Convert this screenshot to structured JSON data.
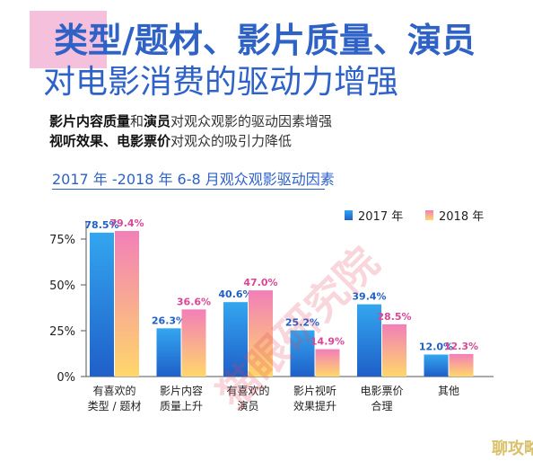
{
  "header": {
    "title_line1": "类型/题材、影片质量、演员",
    "title_line2": "对电影消费的驱动力增强"
  },
  "subtitle": {
    "line1_bold": "影片内容质量",
    "line1_mid": "和",
    "line1_bold2": "演员",
    "line1_rest": "对观众观影的驱动因素增强",
    "line2_bold": "视听效果、电影票价",
    "line2_rest": "对观众的吸引力降低"
  },
  "watermark_text": "猫眼研究院",
  "corner_logo_text": "聊攻略",
  "chart_data": {
    "type": "bar",
    "title": "2017 年 -2018 年 6-8 月观众观影驱动因素",
    "categories": [
      [
        "有喜欢的",
        "类型 / 题材"
      ],
      [
        "影片内容",
        "质量上升"
      ],
      [
        "有喜欢的",
        "演员"
      ],
      [
        "影片视听",
        "效果提升"
      ],
      [
        "电影票价",
        "合理"
      ],
      [
        "其他"
      ]
    ],
    "series": [
      {
        "name": "2017 年",
        "values": [
          78.5,
          26.3,
          40.6,
          25.2,
          39.4,
          12.0
        ],
        "labels": [
          "78.5%",
          "26.3%",
          "40.6%",
          "25.2%",
          "39.4%",
          "12.0%"
        ]
      },
      {
        "name": "2018 年",
        "values": [
          79.4,
          36.6,
          47.0,
          14.9,
          28.5,
          12.3
        ],
        "labels": [
          "79.4%",
          "36.6%",
          "47.0%",
          "14.9%",
          "28.5%",
          "12.3%"
        ]
      }
    ],
    "yticks": [
      "0%",
      "25%",
      "50%",
      "75%"
    ],
    "ytick_values": [
      0,
      25,
      50,
      75
    ],
    "ylim": [
      0,
      80
    ],
    "grid": false,
    "legend_position": "top-right",
    "colors": {
      "s2017_top": "#33a6ef",
      "s2017_bottom": "#1f5fc9",
      "s2018_top": "#f27fb8",
      "s2018_bottom": "#ffd76a"
    }
  }
}
